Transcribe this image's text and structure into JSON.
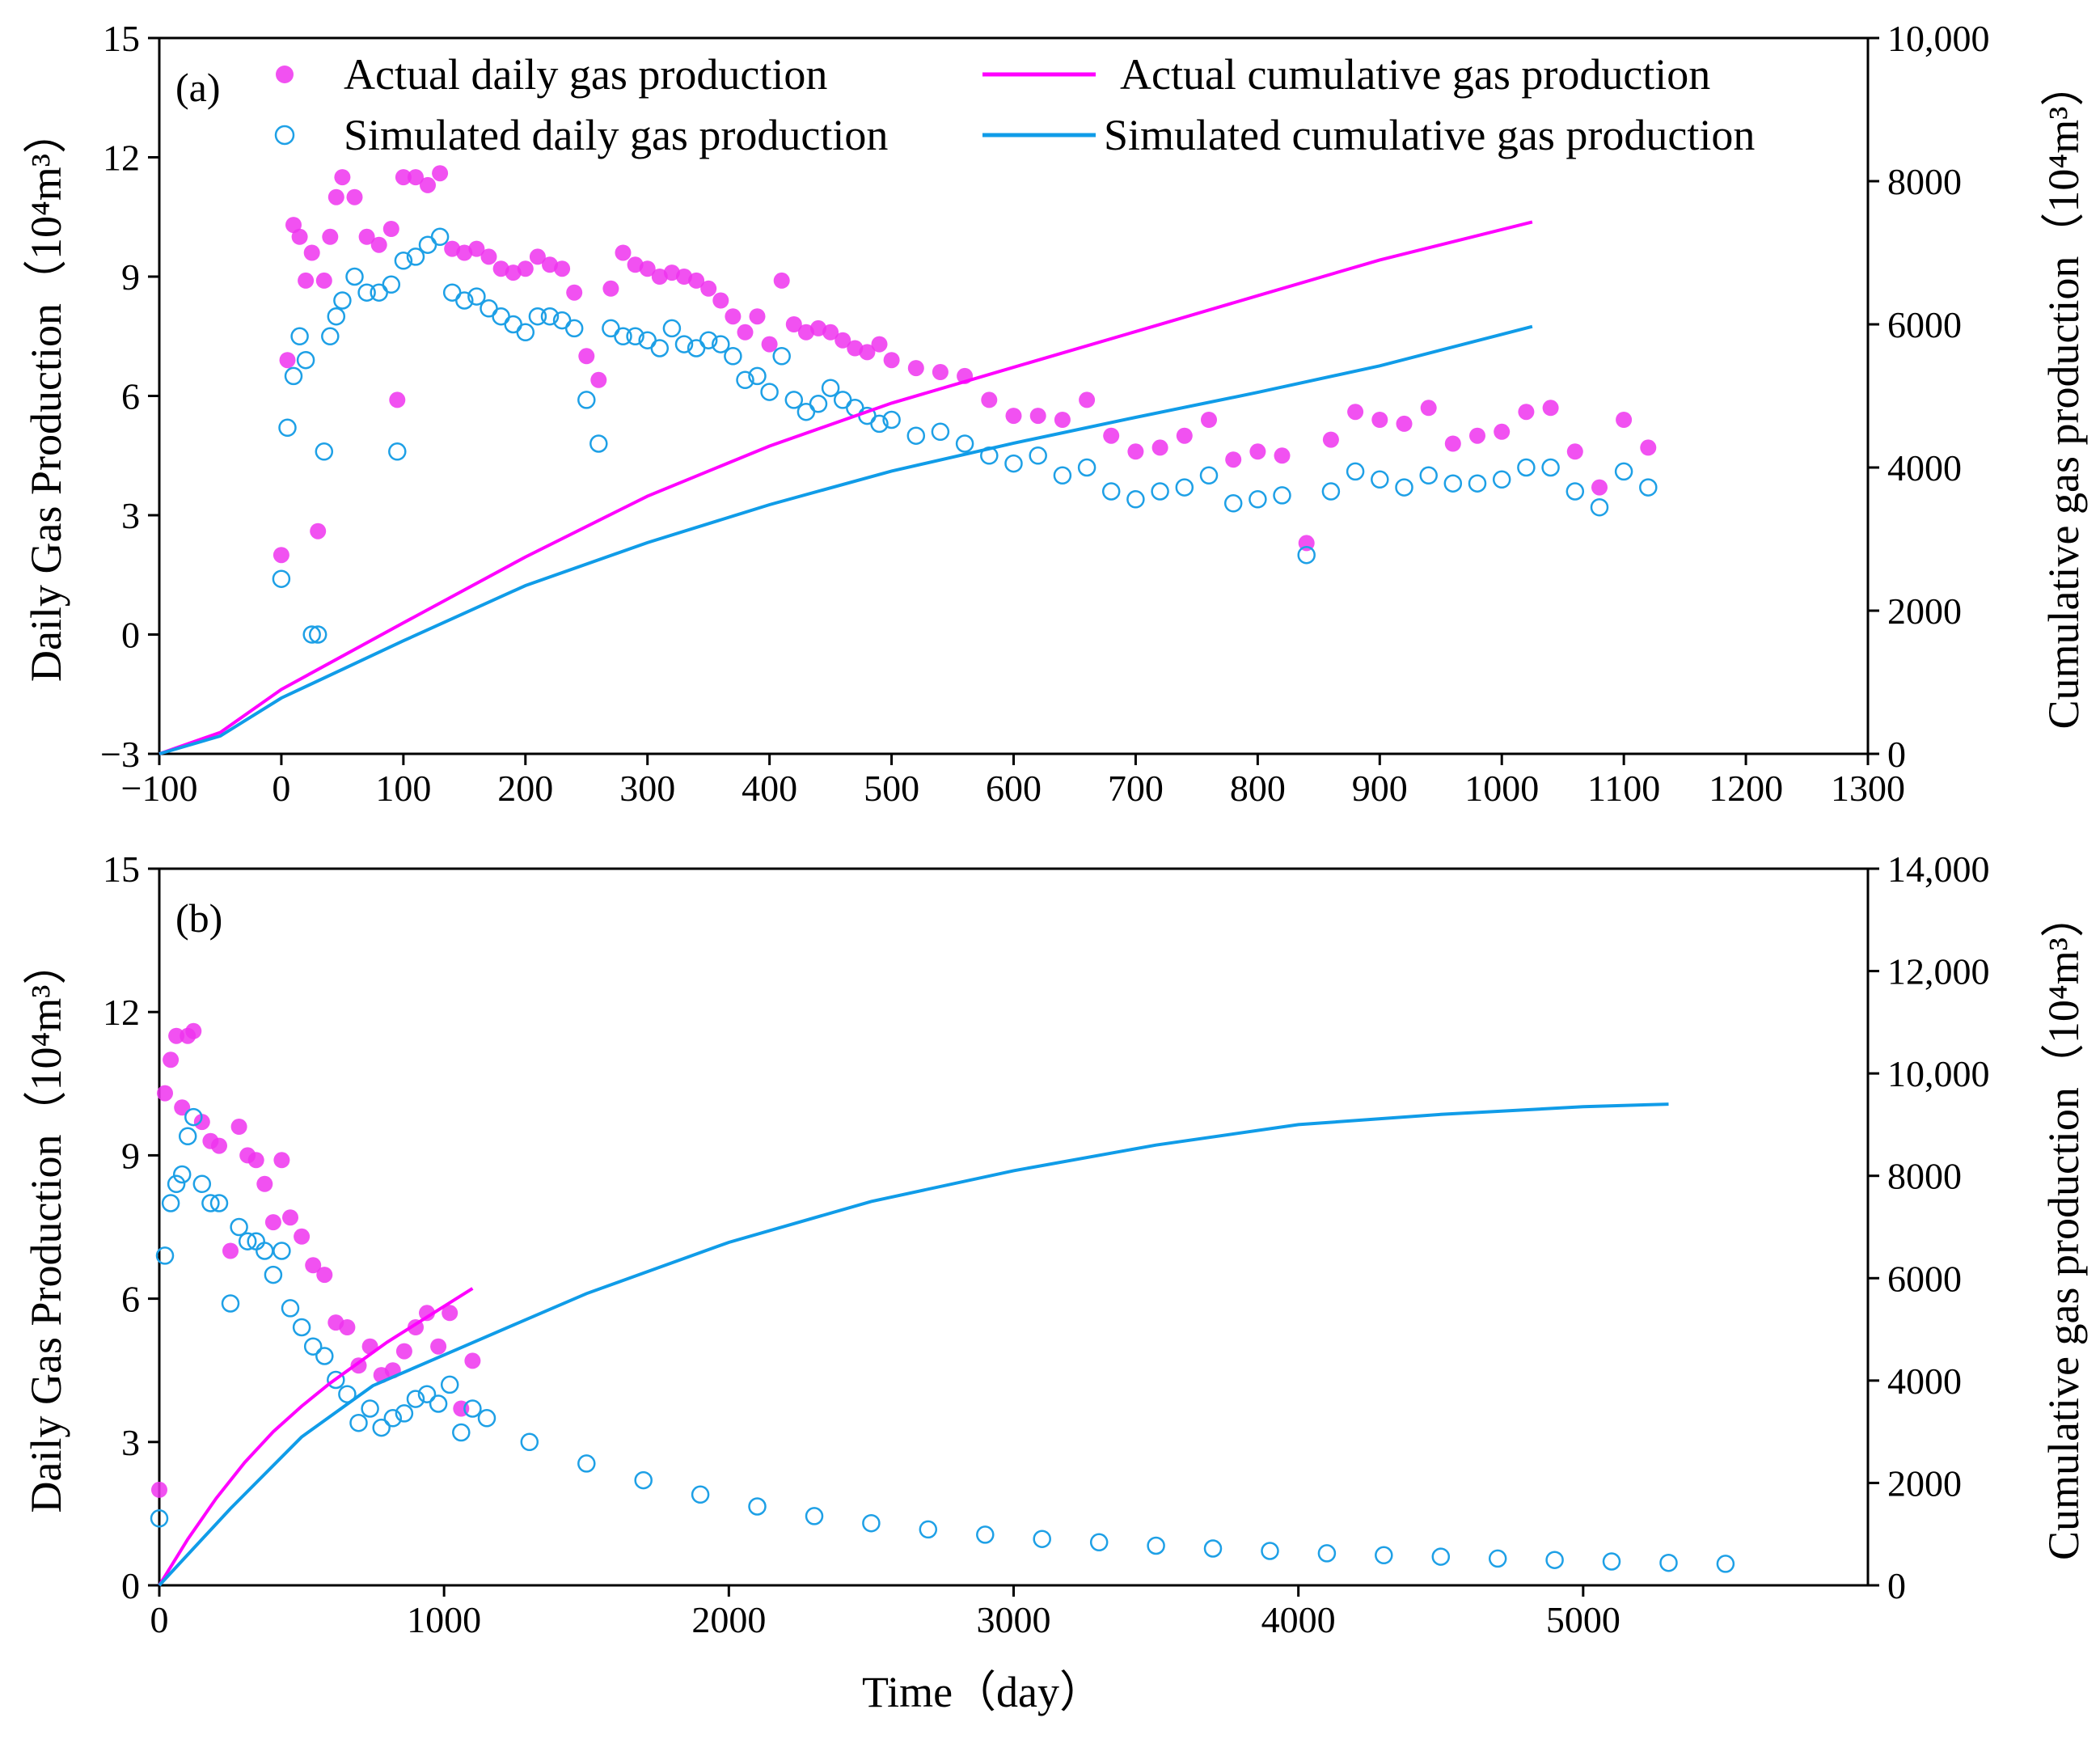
{
  "chart_data": [
    {
      "type": "scatter",
      "panel_label": "(a)",
      "xlim": [
        -100,
        1300
      ],
      "xticks": [
        -100,
        0,
        100,
        200,
        300,
        400,
        500,
        600,
        700,
        800,
        900,
        1000,
        1100,
        1200,
        1300
      ],
      "xtick_labels": [
        "−100",
        "0",
        "100",
        "200",
        "300",
        "400",
        "500",
        "600",
        "700",
        "800",
        "900",
        "1000",
        "1100",
        "1200",
        "1300"
      ],
      "ylim_left": [
        -3,
        15
      ],
      "yticks_left": [
        -3,
        0,
        3,
        6,
        9,
        12,
        15
      ],
      "ytick_labels_left": [
        "−3",
        "0",
        "3",
        "6",
        "9",
        "12",
        "15"
      ],
      "ylim_right": [
        0,
        10000
      ],
      "yticks_right": [
        0,
        2000,
        4000,
        6000,
        8000,
        10000
      ],
      "ytick_labels_right": [
        "0",
        "2000",
        "4000",
        "6000",
        "8000",
        "10,000"
      ],
      "ylabel_left": "Daily Gas Production（10⁴m³）",
      "ylabel_right": "Cumulative gas production（10⁴m³）",
      "legend_position": "top",
      "grid": false,
      "series": [
        {
          "name": "Actual daily gas production",
          "kind": "markers",
          "axis": "left",
          "color": "#ee33ee",
          "x": [
            0,
            5,
            10,
            15,
            20,
            25,
            30,
            35,
            40,
            45,
            50,
            60,
            70,
            80,
            90,
            95,
            100,
            110,
            120,
            130,
            140,
            150,
            160,
            170,
            180,
            190,
            200,
            210,
            220,
            230,
            240,
            250,
            260,
            270,
            280,
            290,
            300,
            310,
            320,
            330,
            340,
            350,
            360,
            370,
            380,
            390,
            400,
            410,
            420,
            430,
            440,
            450,
            460,
            470,
            480,
            490,
            500,
            520,
            540,
            560,
            580,
            600,
            620,
            640,
            660,
            680,
            700,
            720,
            740,
            760,
            780,
            800,
            820,
            840,
            860,
            880,
            900,
            920,
            940,
            960,
            980,
            1000,
            1020,
            1040,
            1060,
            1080,
            1100,
            1120
          ],
          "y": [
            2.0,
            6.9,
            10.3,
            10.0,
            8.9,
            9.6,
            2.6,
            8.9,
            10.0,
            11.0,
            11.5,
            11.0,
            10.0,
            9.8,
            10.2,
            5.9,
            11.5,
            11.5,
            11.3,
            11.6,
            9.7,
            9.6,
            9.7,
            9.5,
            9.2,
            9.1,
            9.2,
            9.5,
            9.3,
            9.2,
            8.6,
            7.0,
            6.4,
            8.7,
            9.6,
            9.3,
            9.2,
            9.0,
            9.1,
            9.0,
            8.9,
            8.7,
            8.4,
            8.0,
            7.6,
            8.0,
            7.3,
            8.9,
            7.8,
            7.6,
            7.7,
            7.6,
            7.4,
            7.2,
            7.1,
            7.3,
            6.9,
            6.7,
            6.6,
            6.5,
            5.9,
            5.5,
            5.5,
            5.4,
            5.9,
            5.0,
            4.6,
            4.7,
            5.0,
            5.4,
            4.4,
            4.6,
            4.5,
            2.3,
            4.9,
            5.6,
            5.4,
            5.3,
            5.7,
            4.8,
            5.0,
            5.1,
            5.6,
            5.7,
            4.6,
            3.7,
            5.4,
            4.7
          ]
        },
        {
          "name": "Simulated daily gas production",
          "kind": "markers",
          "axis": "left",
          "color": "#1ea0e6",
          "x": [
            0,
            5,
            10,
            15,
            20,
            25,
            30,
            35,
            40,
            45,
            50,
            60,
            70,
            80,
            90,
            95,
            100,
            110,
            120,
            130,
            140,
            150,
            160,
            170,
            180,
            190,
            200,
            210,
            220,
            230,
            240,
            250,
            260,
            270,
            280,
            290,
            300,
            310,
            320,
            330,
            340,
            350,
            360,
            370,
            380,
            390,
            400,
            410,
            420,
            430,
            440,
            450,
            460,
            470,
            480,
            490,
            500,
            520,
            540,
            560,
            580,
            600,
            620,
            640,
            660,
            680,
            700,
            720,
            740,
            760,
            780,
            800,
            820,
            840,
            860,
            880,
            900,
            920,
            940,
            960,
            980,
            1000,
            1020,
            1040,
            1060,
            1080,
            1100,
            1120
          ],
          "y": [
            1.4,
            5.2,
            6.5,
            7.5,
            6.9,
            0.0,
            0.0,
            4.6,
            7.5,
            8.0,
            8.4,
            9.0,
            8.6,
            8.6,
            8.8,
            4.6,
            9.4,
            9.5,
            9.8,
            10.0,
            8.6,
            8.4,
            8.5,
            8.2,
            8.0,
            7.8,
            7.6,
            8.0,
            8.0,
            7.9,
            7.7,
            5.9,
            4.8,
            7.7,
            7.5,
            7.5,
            7.4,
            7.2,
            7.7,
            7.3,
            7.2,
            7.4,
            7.3,
            7.0,
            6.4,
            6.5,
            6.1,
            7.0,
            5.9,
            5.6,
            5.8,
            6.2,
            5.9,
            5.7,
            5.5,
            5.3,
            5.4,
            5.0,
            5.1,
            4.8,
            4.5,
            4.3,
            4.5,
            4.0,
            4.2,
            3.6,
            3.4,
            3.6,
            3.7,
            4.0,
            3.3,
            3.4,
            3.5,
            2.0,
            3.6,
            4.1,
            3.9,
            3.7,
            4.0,
            3.8,
            3.8,
            3.9,
            4.2,
            4.2,
            3.6,
            3.2,
            4.1,
            3.7
          ]
        },
        {
          "name": "Actual cumulative gas production",
          "kind": "line",
          "axis": "right",
          "color": "#ff00ff",
          "x": [
            -100,
            -50,
            0,
            100,
            200,
            300,
            400,
            500,
            600,
            700,
            800,
            900,
            1025
          ],
          "y": [
            0,
            300,
            900,
            1830,
            2750,
            3600,
            4300,
            4900,
            5400,
            5900,
            6400,
            6900,
            7430
          ]
        },
        {
          "name": "Simulated cumulative gas production",
          "kind": "line",
          "axis": "right",
          "color": "#109ce8",
          "x": [
            -100,
            -50,
            0,
            100,
            200,
            300,
            400,
            500,
            600,
            700,
            800,
            900,
            1025
          ],
          "y": [
            0,
            250,
            780,
            1580,
            2350,
            2950,
            3480,
            3950,
            4340,
            4700,
            5050,
            5420,
            5970
          ]
        }
      ]
    },
    {
      "type": "scatter",
      "panel_label": "(b)",
      "xlim": [
        0,
        6000
      ],
      "xticks": [
        0,
        1000,
        2000,
        3000,
        4000,
        5000
      ],
      "xtick_labels": [
        "0",
        "1000",
        "2000",
        "3000",
        "4000",
        "5000"
      ],
      "xlabel": "Time（day）",
      "ylim_left": [
        0,
        15
      ],
      "yticks_left": [
        0,
        3,
        6,
        9,
        12,
        15
      ],
      "ytick_labels_left": [
        "0",
        "3",
        "6",
        "9",
        "12",
        "15"
      ],
      "ylim_right": [
        0,
        14000
      ],
      "yticks_right": [
        0,
        2000,
        4000,
        6000,
        8000,
        10000,
        12000,
        14000
      ],
      "ytick_labels_right": [
        "0",
        "2000",
        "4000",
        "6000",
        "8000",
        "10,000",
        "12,000",
        "14,000"
      ],
      "ylabel_left": "Daily Gas Production（10⁴m³）",
      "ylabel_right": "Cumulative gas production（10⁴m³）",
      "grid": false,
      "series": [
        {
          "kind": "markers",
          "axis": "left",
          "color": "#ee33ee",
          "x": [
            0,
            20,
            40,
            60,
            80,
            100,
            120,
            150,
            180,
            210,
            250,
            280,
            310,
            340,
            370,
            400,
            430,
            460,
            500,
            540,
            580,
            620,
            660,
            700,
            740,
            780,
            820,
            860,
            900,
            940,
            980,
            1020,
            1060,
            1100
          ],
          "y": [
            2.0,
            10.3,
            11.0,
            11.5,
            10.0,
            11.5,
            11.6,
            9.7,
            9.3,
            9.2,
            7.0,
            9.6,
            9.0,
            8.9,
            8.4,
            7.6,
            8.9,
            7.7,
            7.3,
            6.7,
            6.5,
            5.5,
            5.4,
            4.6,
            5.0,
            4.4,
            4.5,
            4.9,
            5.4,
            5.7,
            5.0,
            5.7,
            3.7,
            4.7
          ]
        },
        {
          "kind": "markers",
          "axis": "left",
          "color": "#1ea0e6",
          "x": [
            0,
            20,
            40,
            60,
            80,
            100,
            120,
            150,
            180,
            210,
            250,
            280,
            310,
            340,
            370,
            400,
            430,
            460,
            500,
            540,
            580,
            620,
            660,
            700,
            740,
            780,
            820,
            860,
            900,
            940,
            980,
            1020,
            1060,
            1100,
            1150,
            1300,
            1500,
            1700,
            1900,
            2100,
            2300,
            2500,
            2700,
            2900,
            3100,
            3300,
            3500,
            3700,
            3900,
            4100,
            4300,
            4500,
            4700,
            4900,
            5100,
            5300,
            5500
          ],
          "y": [
            1.4,
            6.9,
            8.0,
            8.4,
            8.6,
            9.4,
            9.8,
            8.4,
            8.0,
            8.0,
            5.9,
            7.5,
            7.2,
            7.2,
            7.0,
            6.5,
            7.0,
            5.8,
            5.4,
            5.0,
            4.8,
            4.3,
            4.0,
            3.4,
            3.7,
            3.3,
            3.5,
            3.6,
            3.9,
            4.0,
            3.8,
            4.2,
            3.2,
            3.7,
            3.5,
            3.0,
            2.55,
            2.2,
            1.9,
            1.65,
            1.45,
            1.3,
            1.17,
            1.06,
            0.97,
            0.9,
            0.83,
            0.77,
            0.72,
            0.67,
            0.63,
            0.6,
            0.56,
            0.53,
            0.5,
            0.47,
            0.45
          ]
        },
        {
          "kind": "line",
          "axis": "right",
          "color": "#ff00ff",
          "x": [
            0,
            100,
            200,
            300,
            400,
            500,
            600,
            700,
            800,
            900,
            1000,
            1100
          ],
          "y": [
            0,
            900,
            1700,
            2400,
            3000,
            3500,
            3950,
            4350,
            4750,
            5100,
            5450,
            5800
          ]
        },
        {
          "kind": "line",
          "axis": "right",
          "color": "#109ce8",
          "x": [
            0,
            250,
            500,
            750,
            1000,
            1250,
            1500,
            1750,
            2000,
            2500,
            3000,
            3500,
            4000,
            4500,
            5000,
            5300
          ],
          "y": [
            0,
            1500,
            2900,
            3900,
            4500,
            5100,
            5700,
            6200,
            6700,
            7500,
            8100,
            8600,
            9000,
            9200,
            9350,
            9400
          ]
        }
      ]
    }
  ],
  "legend": {
    "actual_daily": "Actual daily gas production",
    "simulated_daily": "Simulated daily gas production",
    "actual_cumulative": "Actual cumulative gas production",
    "simulated_cumulative": "Simulated cumulative gas production"
  },
  "colors": {
    "actual_marker_fill": "#ee33ee",
    "simulated_marker_stroke": "#1ea0e6",
    "actual_line": "#ff00ff",
    "simulated_line": "#109ce8"
  }
}
